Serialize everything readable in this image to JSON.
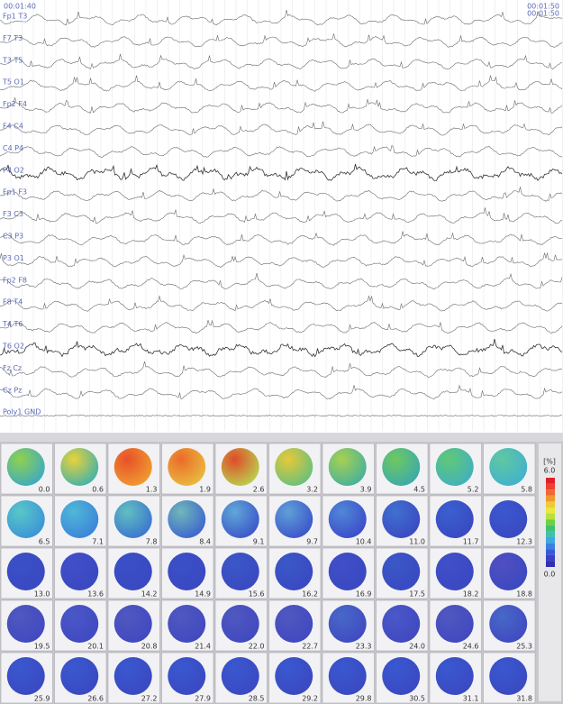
{
  "header": {
    "start_time": "00:01:40",
    "end_time": [
      "00:01:50",
      "00:01:50"
    ]
  },
  "channels": [
    "Fp1 T3",
    "F7 T3",
    "T3 T5",
    "T5 O1",
    "Fp2 F4",
    "F4 C4",
    "C4 P4",
    "P4 O2",
    "Fp1 F3",
    "F3 C3",
    "C3 P3",
    "P3 O1",
    "Fp2 F8",
    "F8 T4",
    "T4 T6",
    "T6 O2",
    "Fz Cz",
    "Cz Pz",
    "Poly1 GND"
  ],
  "scale": {
    "unit": "[%]",
    "max": "6.0",
    "min": "0.0"
  },
  "maps": [
    {
      "label": "0.0",
      "colors": [
        "#8fd14f",
        "#3aa8c8"
      ]
    },
    {
      "label": "0.6",
      "colors": [
        "#e9d23a",
        "#38b0b0"
      ]
    },
    {
      "label": "1.3",
      "colors": [
        "#e8502a",
        "#f0a030"
      ]
    },
    {
      "label": "1.9",
      "colors": [
        "#ec6a2a",
        "#e8c040"
      ]
    },
    {
      "label": "2.6",
      "colors": [
        "#e04a2a",
        "#b8d850"
      ]
    },
    {
      "label": "3.2",
      "colors": [
        "#e8c838",
        "#60c080"
      ]
    },
    {
      "label": "3.9",
      "colors": [
        "#a8d050",
        "#40b0a0"
      ]
    },
    {
      "label": "4.5",
      "colors": [
        "#70c860",
        "#38a8b0"
      ]
    },
    {
      "label": "5.2",
      "colors": [
        "#60c878",
        "#40b0c0"
      ]
    },
    {
      "label": "5.8",
      "colors": [
        "#60c8a0",
        "#40b0d0"
      ]
    },
    {
      "label": "6.5",
      "colors": [
        "#58c8c8",
        "#3a90d8"
      ]
    },
    {
      "label": "7.1",
      "colors": [
        "#50b8d8",
        "#3a80d8"
      ]
    },
    {
      "label": "7.8",
      "colors": [
        "#60c0c0",
        "#3a70d0"
      ]
    },
    {
      "label": "8.4",
      "colors": [
        "#70b8b8",
        "#3a60d0"
      ]
    },
    {
      "label": "9.1",
      "colors": [
        "#60a8d8",
        "#3a50c8"
      ]
    },
    {
      "label": "9.7",
      "colors": [
        "#60a0d8",
        "#3a50c8"
      ]
    },
    {
      "label": "10.4",
      "colors": [
        "#5088d8",
        "#3a48c8"
      ]
    },
    {
      "label": "11.0",
      "colors": [
        "#4070d0",
        "#3a48c0"
      ]
    },
    {
      "label": "11.7",
      "colors": [
        "#3a60d0",
        "#3a48c0"
      ]
    },
    {
      "label": "12.3",
      "colors": [
        "#3a58d0",
        "#3a48c0"
      ]
    },
    {
      "label": "13.0",
      "colors": [
        "#3a50c8",
        "#3a48c0"
      ]
    },
    {
      "label": "13.6",
      "colors": [
        "#4050c8",
        "#3a48c0"
      ]
    },
    {
      "label": "14.2",
      "colors": [
        "#3a50c8",
        "#3a48c0"
      ]
    },
    {
      "label": "14.9",
      "colors": [
        "#3a50c8",
        "#3a48c0"
      ]
    },
    {
      "label": "15.6",
      "colors": [
        "#3a58c8",
        "#3a48c0"
      ]
    },
    {
      "label": "16.2",
      "colors": [
        "#3a58c8",
        "#3a48c0"
      ]
    },
    {
      "label": "16.9",
      "colors": [
        "#4050c8",
        "#3a48c0"
      ]
    },
    {
      "label": "17.5",
      "colors": [
        "#3a58c8",
        "#3a48c0"
      ]
    },
    {
      "label": "18.2",
      "colors": [
        "#4050c8",
        "#3a48c0"
      ]
    },
    {
      "label": "18.8",
      "colors": [
        "#5050c0",
        "#3a48c0"
      ]
    },
    {
      "label": "19.5",
      "colors": [
        "#5058c0",
        "#4048c0"
      ]
    },
    {
      "label": "20.1",
      "colors": [
        "#4a58c8",
        "#4048c0"
      ]
    },
    {
      "label": "20.8",
      "colors": [
        "#5058c0",
        "#4048c0"
      ]
    },
    {
      "label": "21.4",
      "colors": [
        "#5058c0",
        "#4048c0"
      ]
    },
    {
      "label": "22.0",
      "colors": [
        "#5058c0",
        "#4048c0"
      ]
    },
    {
      "label": "22.7",
      "colors": [
        "#5058c0",
        "#4048c0"
      ]
    },
    {
      "label": "23.3",
      "colors": [
        "#4868c8",
        "#4048c0"
      ]
    },
    {
      "label": "24.0",
      "colors": [
        "#4a58c8",
        "#4048c0"
      ]
    },
    {
      "label": "24.6",
      "colors": [
        "#5058c0",
        "#4048c0"
      ]
    },
    {
      "label": "25.3",
      "colors": [
        "#4868c8",
        "#4048c0"
      ]
    },
    {
      "label": "25.9",
      "colors": [
        "#3a58d0",
        "#3a48c0"
      ]
    },
    {
      "label": "26.6",
      "colors": [
        "#3a58d0",
        "#3a48c0"
      ]
    },
    {
      "label": "27.2",
      "colors": [
        "#3a58d0",
        "#3a48c0"
      ]
    },
    {
      "label": "27.9",
      "colors": [
        "#3a58d0",
        "#3a48c0"
      ]
    },
    {
      "label": "28.5",
      "colors": [
        "#3a58d0",
        "#3a48c0"
      ]
    },
    {
      "label": "29.2",
      "colors": [
        "#3a58d0",
        "#3a48c0"
      ]
    },
    {
      "label": "29.8",
      "colors": [
        "#3a58d0",
        "#3a48c0"
      ]
    },
    {
      "label": "30.5",
      "colors": [
        "#3a58d0",
        "#3a48c0"
      ]
    },
    {
      "label": "31.1",
      "colors": [
        "#3a58d0",
        "#3a48c0"
      ]
    },
    {
      "label": "31.8",
      "colors": [
        "#3a58d0",
        "#3a48c0"
      ]
    }
  ]
}
